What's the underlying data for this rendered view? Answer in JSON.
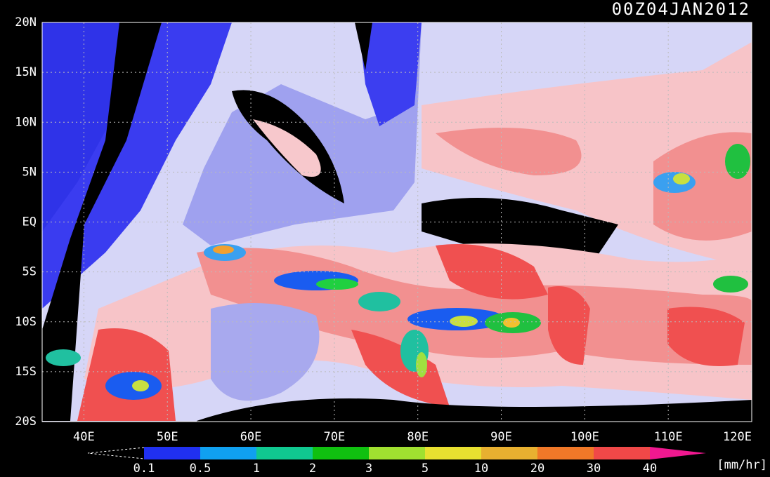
{
  "title": "00Z04JAN2012",
  "lat_labels": [
    "20N",
    "15N",
    "10N",
    "5N",
    "EQ",
    "5S",
    "10S",
    "15S",
    "20S"
  ],
  "lon_labels": [
    "40E",
    "50E",
    "60E",
    "70E",
    "80E",
    "90E",
    "100E",
    "110E",
    "120E"
  ],
  "colorbar": {
    "labels": [
      "0.1",
      "0.5",
      "1",
      "2",
      "3",
      "5",
      "10",
      "20",
      "30",
      "40"
    ],
    "unit": "[mm/hr]"
  }
}
